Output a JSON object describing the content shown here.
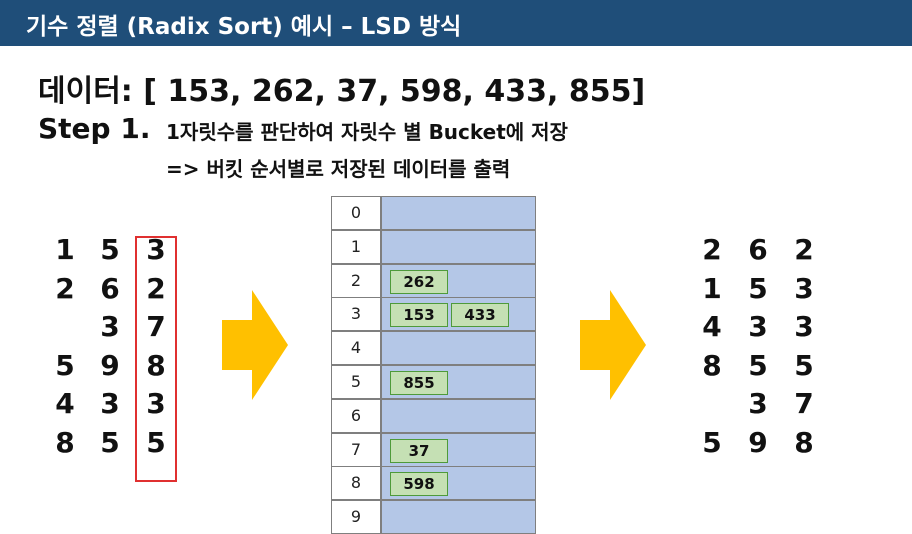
{
  "title": "기수 정렬 (Radix Sort) 예시 – LSD 방식",
  "data_line": "데이터: [ 153, 262, 37, 598, 433, 855]",
  "step": {
    "label": "Step 1.",
    "line1": "1자릿수를 판단하여 자릿수 별 Bucket에 저장",
    "line2": "=> 버킷 순서별로 저장된 데이터를 출력"
  },
  "input_numbers": [
    [
      "1",
      "5",
      "3"
    ],
    [
      "2",
      "6",
      "2"
    ],
    [
      "",
      "3",
      "7"
    ],
    [
      "5",
      "9",
      "8"
    ],
    [
      "4",
      "3",
      "3"
    ],
    [
      "8",
      "5",
      "5"
    ]
  ],
  "buckets": [
    {
      "index": "0",
      "items": []
    },
    {
      "index": "1",
      "items": []
    },
    {
      "index": "2",
      "items": [
        "262"
      ]
    },
    {
      "index": "3",
      "items": [
        "153",
        "433"
      ]
    },
    {
      "index": "4",
      "items": []
    },
    {
      "index": "5",
      "items": [
        "855"
      ]
    },
    {
      "index": "6",
      "items": []
    },
    {
      "index": "7",
      "items": [
        "37"
      ]
    },
    {
      "index": "8",
      "items": [
        "598"
      ]
    },
    {
      "index": "9",
      "items": []
    }
  ],
  "output_numbers": [
    [
      "2",
      "6",
      "2"
    ],
    [
      "1",
      "5",
      "3"
    ],
    [
      "4",
      "3",
      "3"
    ],
    [
      "8",
      "5",
      "5"
    ],
    [
      "",
      "3",
      "7"
    ],
    [
      "5",
      "9",
      "8"
    ]
  ],
  "colors": {
    "title_bg": "#1f4e79",
    "arrow": "#ffc000",
    "bucket_bg": "#b4c7e7",
    "chip_bg": "#c5e0b4",
    "highlight": "#e03030"
  }
}
